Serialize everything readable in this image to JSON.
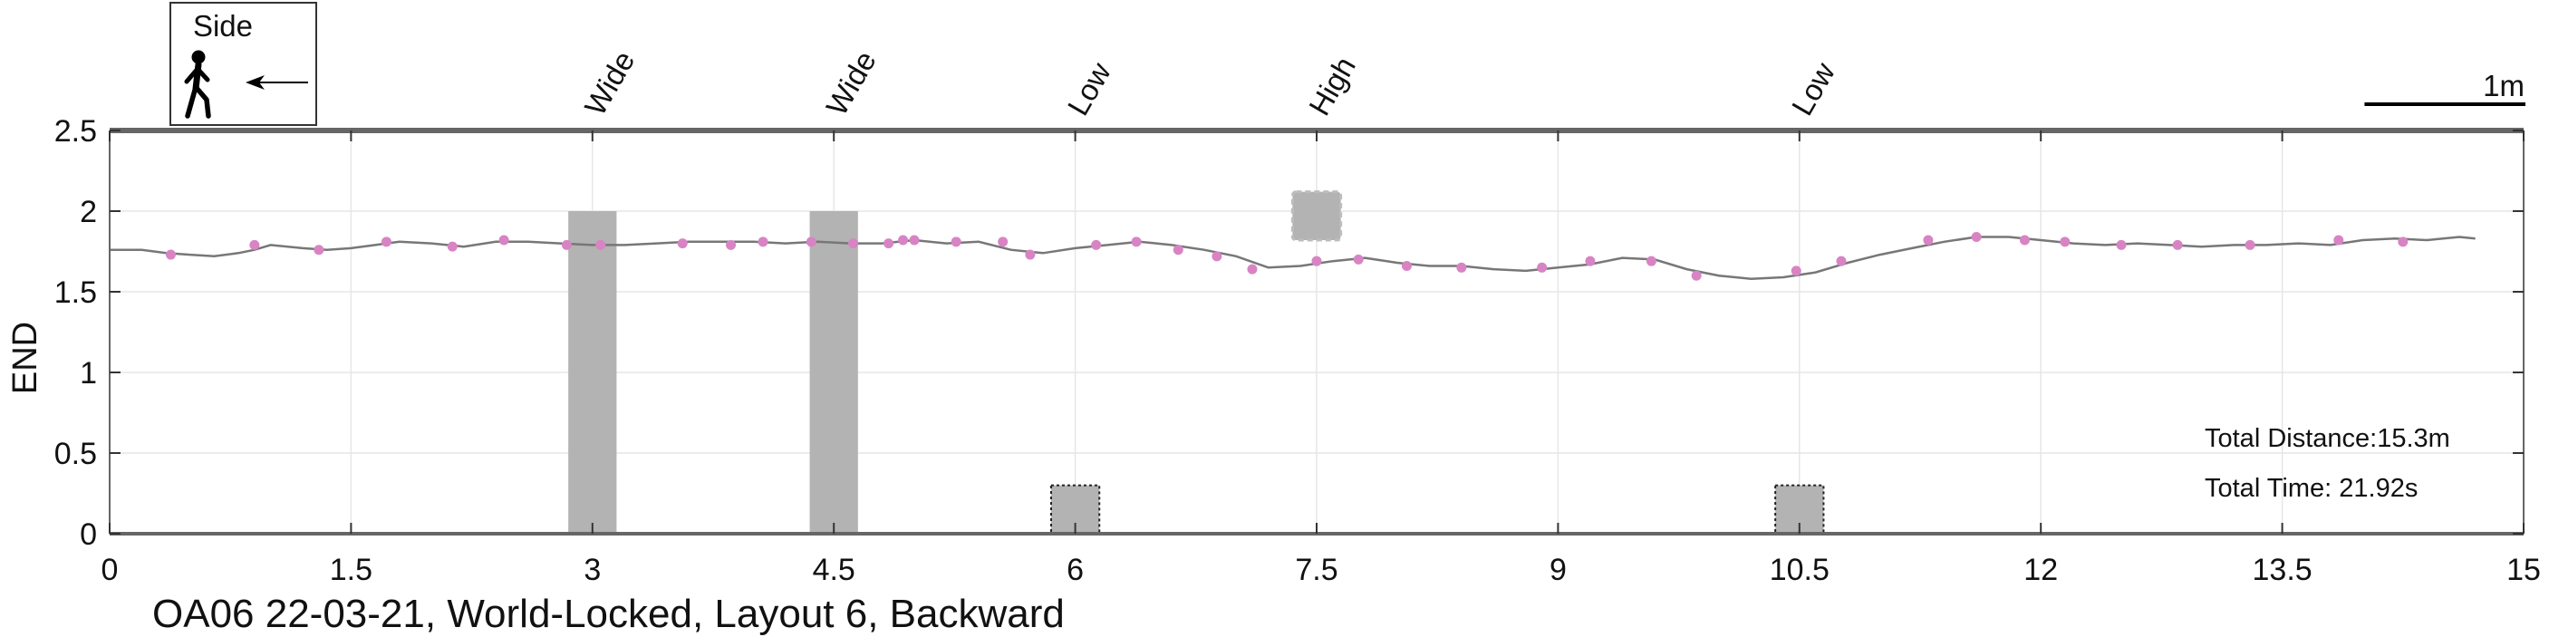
{
  "chart_data": {
    "type": "line",
    "title": "OA06 22-03-21, World-Locked, Layout 6, Backward",
    "xlabel": "",
    "ylabel": "END",
    "xlim": [
      0,
      15
    ],
    "ylim": [
      0,
      2.5
    ],
    "xticks": [
      0,
      1.5,
      3,
      4.5,
      6,
      7.5,
      9,
      10.5,
      12,
      13.5,
      15
    ],
    "xtick_labels": [
      "0",
      "1.5",
      "3",
      "4.5",
      "6",
      "7.5",
      "9",
      "10.5",
      "12",
      "13.5",
      "15"
    ],
    "yticks": [
      0,
      0.5,
      1,
      1.5,
      2,
      2.5
    ],
    "ytick_labels": [
      "0",
      "0.5",
      "1",
      "1.5",
      "2",
      "2.5"
    ],
    "grid": true,
    "colors": {
      "trace": "#777777",
      "markers": "#d884c4",
      "obstacles": "#b3b3b3",
      "axis": "#666666"
    },
    "trace": {
      "x": [
        0,
        0.2,
        0.35,
        0.5,
        0.65,
        0.8,
        0.9,
        1.0,
        1.2,
        1.35,
        1.5,
        1.65,
        1.8,
        2.0,
        2.2,
        2.4,
        2.6,
        2.8,
        3.0,
        3.2,
        3.4,
        3.6,
        3.8,
        4.0,
        4.2,
        4.4,
        4.6,
        4.8,
        5.0,
        5.2,
        5.4,
        5.6,
        5.8,
        6.0,
        6.2,
        6.4,
        6.6,
        6.8,
        7.0,
        7.2,
        7.4,
        7.6,
        7.8,
        8.0,
        8.2,
        8.4,
        8.6,
        8.8,
        9.0,
        9.2,
        9.4,
        9.6,
        9.8,
        10.0,
        10.2,
        10.4,
        10.6,
        10.8,
        11.0,
        11.2,
        11.4,
        11.6,
        11.8,
        12.0,
        12.2,
        12.4,
        12.6,
        12.8,
        13.0,
        13.2,
        13.4,
        13.6,
        13.8,
        14.0,
        14.2,
        14.4,
        14.6,
        14.7
      ],
      "y": [
        1.76,
        1.76,
        1.74,
        1.73,
        1.72,
        1.74,
        1.76,
        1.79,
        1.77,
        1.76,
        1.77,
        1.79,
        1.81,
        1.8,
        1.78,
        1.81,
        1.81,
        1.8,
        1.79,
        1.79,
        1.8,
        1.81,
        1.81,
        1.81,
        1.8,
        1.81,
        1.8,
        1.8,
        1.82,
        1.8,
        1.81,
        1.76,
        1.74,
        1.77,
        1.79,
        1.81,
        1.79,
        1.76,
        1.72,
        1.65,
        1.66,
        1.69,
        1.71,
        1.68,
        1.66,
        1.66,
        1.64,
        1.63,
        1.65,
        1.67,
        1.71,
        1.7,
        1.64,
        1.6,
        1.58,
        1.59,
        1.62,
        1.68,
        1.73,
        1.77,
        1.81,
        1.84,
        1.84,
        1.82,
        1.8,
        1.79,
        1.8,
        1.79,
        1.78,
        1.79,
        1.79,
        1.8,
        1.79,
        1.82,
        1.83,
        1.82,
        1.84,
        1.83
      ]
    },
    "markers": {
      "x": [
        0.38,
        0.9,
        1.3,
        1.72,
        2.13,
        2.45,
        2.84,
        3.05,
        3.56,
        3.86,
        4.06,
        4.36,
        4.62,
        4.84,
        4.93,
        5.0,
        5.26,
        5.55,
        5.72,
        6.13,
        6.38,
        6.64,
        6.88,
        7.1,
        7.5,
        7.76,
        8.06,
        8.4,
        8.9,
        9.2,
        9.58,
        9.86,
        10.48,
        10.76,
        11.3,
        11.6,
        11.9,
        12.15,
        12.5,
        12.85,
        13.3,
        13.85,
        14.25
      ],
      "y": [
        1.73,
        1.79,
        1.76,
        1.81,
        1.78,
        1.82,
        1.79,
        1.79,
        1.8,
        1.79,
        1.81,
        1.81,
        1.8,
        1.8,
        1.82,
        1.82,
        1.81,
        1.81,
        1.73,
        1.79,
        1.81,
        1.76,
        1.72,
        1.64,
        1.69,
        1.7,
        1.66,
        1.65,
        1.65,
        1.69,
        1.69,
        1.6,
        1.63,
        1.69,
        1.82,
        1.84,
        1.82,
        1.81,
        1.79,
        1.79,
        1.79,
        1.82,
        1.81
      ]
    },
    "obstacles": [
      {
        "label": "Wide",
        "type": "wide",
        "x": [
          2.85,
          3.15
        ],
        "y": [
          0,
          2.0
        ]
      },
      {
        "label": "Wide",
        "type": "wide",
        "x": [
          4.35,
          4.65
        ],
        "y": [
          0,
          2.0
        ]
      },
      {
        "label": "Low",
        "type": "low",
        "x": [
          5.85,
          6.15
        ],
        "y": [
          0,
          0.3
        ]
      },
      {
        "label": "High",
        "type": "high",
        "x": [
          7.35,
          7.65
        ],
        "y": [
          1.82,
          2.12
        ]
      },
      {
        "label": "Low",
        "type": "low",
        "x": [
          10.35,
          10.65
        ],
        "y": [
          0,
          0.3
        ]
      }
    ],
    "scale_bar": {
      "label": "1m",
      "length": 1.0
    }
  },
  "legend_box": {
    "label": "Side",
    "icon": "walking-person-icon",
    "arrow": "left-arrow-icon"
  },
  "info": {
    "distance": "Total Distance:15.3m",
    "time": "Total Time: 21.92s"
  }
}
